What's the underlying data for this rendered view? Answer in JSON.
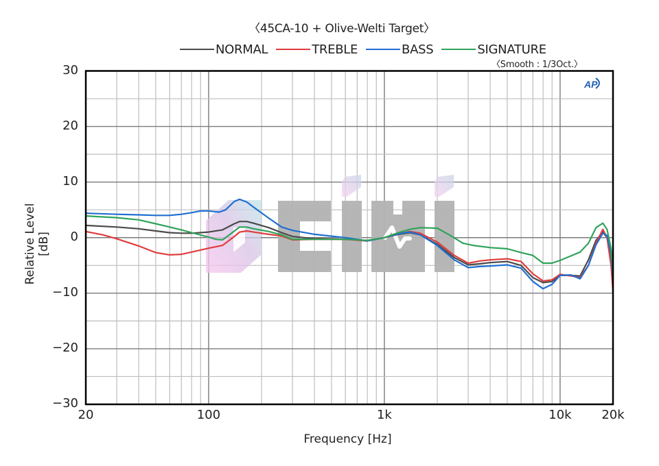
{
  "chart_data": {
    "type": "line",
    "title": "〈45CA-10 + Olive-Welti Target〉",
    "subtitle": "〈Smooth : 1/3Oct.〉",
    "xlabel": "Frequency [Hz]",
    "ylabel": "Relative Level [dB]",
    "xscale": "log",
    "xlim": [
      20,
      20000
    ],
    "ylim": [
      -30,
      30
    ],
    "x_ticks": [
      {
        "value": 20,
        "label": "20"
      },
      {
        "value": 100,
        "label": "100"
      },
      {
        "value": 1000,
        "label": "1k"
      },
      {
        "value": 10000,
        "label": "10k"
      },
      {
        "value": 20000,
        "label": "20k"
      }
    ],
    "y_ticks": [
      30,
      20,
      10,
      0,
      -10,
      -20,
      -30
    ],
    "y_tick_labels": [
      "30",
      "20",
      "10",
      "0",
      "−10",
      "−20",
      "−30"
    ],
    "grid": true,
    "legend_position": "top",
    "logo": "AP",
    "watermark": "eiHi",
    "series": [
      {
        "name": "NORMAL",
        "color": "#4a4a4a",
        "x": [
          20,
          30,
          40,
          50,
          60,
          70,
          80,
          100,
          120,
          140,
          150,
          165,
          180,
          220,
          260,
          300,
          400,
          600,
          800,
          1000,
          1200,
          1400,
          1600,
          2000,
          2500,
          3000,
          3500,
          4000,
          5000,
          6000,
          7000,
          8000,
          9000,
          10000,
          11500,
          13000,
          14500,
          16000,
          17500,
          18500,
          19500,
          20000
        ],
        "y": [
          2.2,
          1.9,
          1.6,
          1.2,
          0.9,
          0.8,
          0.8,
          1.0,
          1.4,
          2.5,
          2.9,
          2.9,
          2.6,
          1.8,
          0.9,
          0.2,
          -0.2,
          -0.3,
          -0.5,
          0.0,
          0.6,
          0.9,
          0.5,
          -1.2,
          -3.6,
          -4.9,
          -4.7,
          -4.5,
          -4.3,
          -5.0,
          -7.2,
          -8.1,
          -7.9,
          -6.8,
          -6.8,
          -6.9,
          -4.0,
          -0.5,
          1.0,
          0.0,
          -3.0,
          -7.0
        ]
      },
      {
        "name": "TREBLE",
        "color": "#e03c3c",
        "x": [
          20,
          25,
          30,
          40,
          50,
          60,
          70,
          80,
          100,
          120,
          140,
          150,
          165,
          180,
          220,
          260,
          300,
          400,
          600,
          800,
          1000,
          1200,
          1400,
          1600,
          2000,
          2500,
          3000,
          3500,
          4000,
          5000,
          6000,
          7000,
          8000,
          9000,
          10000,
          11500,
          13000,
          14500,
          16000,
          17500,
          18500,
          19500,
          20000
        ],
        "y": [
          1.1,
          0.5,
          -0.2,
          -1.5,
          -2.7,
          -3.1,
          -3.0,
          -2.6,
          -1.9,
          -1.4,
          0.2,
          1.0,
          1.2,
          1.0,
          0.6,
          0.3,
          -0.4,
          -0.3,
          -0.3,
          -0.6,
          0.0,
          0.7,
          1.1,
          0.8,
          -0.8,
          -3.2,
          -4.6,
          -4.2,
          -4.0,
          -3.8,
          -4.3,
          -6.5,
          -7.8,
          -7.6,
          -6.6,
          -6.9,
          -7.2,
          -5.0,
          -1.0,
          1.5,
          0.0,
          -5.0,
          -9.8
        ]
      },
      {
        "name": "BASS",
        "color": "#1f6fd1",
        "x": [
          20,
          30,
          40,
          50,
          60,
          70,
          80,
          90,
          100,
          115,
          125,
          140,
          150,
          165,
          180,
          220,
          260,
          300,
          400,
          600,
          800,
          1000,
          1200,
          1400,
          1600,
          2000,
          2500,
          3000,
          3500,
          4000,
          5000,
          6000,
          7000,
          8000,
          9000,
          10000,
          11500,
          13000,
          14500,
          16000,
          17500,
          18500,
          19500,
          20000
        ],
        "y": [
          4.4,
          4.2,
          4.1,
          4.0,
          4.0,
          4.2,
          4.5,
          4.8,
          4.8,
          4.6,
          5.0,
          6.5,
          6.9,
          6.4,
          5.5,
          3.5,
          1.9,
          1.3,
          0.6,
          0.0,
          -0.6,
          0.0,
          0.7,
          1.0,
          0.5,
          -1.4,
          -4.0,
          -5.4,
          -5.2,
          -5.1,
          -4.9,
          -5.5,
          -7.9,
          -9.2,
          -8.4,
          -6.8,
          -6.7,
          -7.4,
          -5.0,
          -1.3,
          0.8,
          0.4,
          -3.0,
          -7.5
        ]
      },
      {
        "name": "SIGNATURE",
        "color": "#2fa35a",
        "x": [
          20,
          30,
          40,
          50,
          60,
          70,
          80,
          100,
          110,
          120,
          135,
          150,
          165,
          180,
          220,
          260,
          300,
          400,
          600,
          800,
          1000,
          1200,
          1400,
          1600,
          2000,
          2400,
          2800,
          3200,
          4000,
          5000,
          6000,
          7000,
          8000,
          9000,
          10000,
          11500,
          13000,
          14500,
          16000,
          17500,
          18500,
          19500,
          20000
        ],
        "y": [
          3.9,
          3.6,
          3.2,
          2.5,
          1.9,
          1.4,
          0.9,
          0.1,
          -0.3,
          -0.4,
          0.8,
          1.9,
          1.9,
          1.6,
          1.1,
          0.5,
          -0.3,
          -0.3,
          -0.3,
          -0.5,
          0.0,
          0.9,
          1.5,
          1.8,
          1.7,
          0.3,
          -1.0,
          -1.4,
          -1.8,
          -2.0,
          -2.7,
          -3.2,
          -4.6,
          -4.6,
          -4.1,
          -3.3,
          -2.6,
          -1.0,
          1.8,
          2.6,
          1.5,
          -2.0,
          -6.0
        ]
      }
    ]
  }
}
